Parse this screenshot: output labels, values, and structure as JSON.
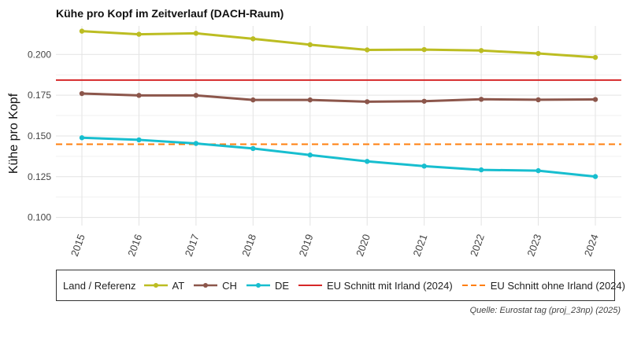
{
  "chart_data": {
    "type": "line",
    "title": "Kühe pro Kopf im Zeitverlauf (DACH-Raum)",
    "ylabel": "Kühe pro Kopf",
    "xlabel": "",
    "ylim": [
      0.095,
      0.2175
    ],
    "yticks": [
      0.1,
      0.125,
      0.15,
      0.175,
      0.2
    ],
    "ytick_labels": [
      "0.100",
      "0.125",
      "0.150",
      "0.175",
      "0.200"
    ],
    "categories": [
      "2015",
      "2016",
      "2017",
      "2018",
      "2019",
      "2020",
      "2021",
      "2022",
      "2023",
      "2024"
    ],
    "series": [
      {
        "name": "AT",
        "color": "#bcbd22",
        "values": [
          0.2143,
          0.2124,
          0.213,
          0.2096,
          0.206,
          0.2028,
          0.203,
          0.2024,
          0.2006,
          0.1982
        ]
      },
      {
        "name": "CH",
        "color": "#8c564b",
        "values": [
          0.176,
          0.1749,
          0.1749,
          0.1721,
          0.1721,
          0.171,
          0.1713,
          0.1725,
          0.1722,
          0.1724
        ]
      },
      {
        "name": "DE",
        "color": "#17becf",
        "values": [
          0.1489,
          0.1476,
          0.1454,
          0.1423,
          0.1383,
          0.1344,
          0.1315,
          0.1292,
          0.1287,
          0.1251
        ]
      }
    ],
    "reference_lines": [
      {
        "name": "EU Schnitt mit Irland (2024)",
        "value": 0.1843,
        "color": "#d62728",
        "style": "solid"
      },
      {
        "name": "EU Schnitt ohne Irland (2024)",
        "value": 0.1449,
        "color": "#ff7f0e",
        "style": "dashed"
      }
    ],
    "legend": {
      "title": "Land / Referenz",
      "position": "bottom"
    },
    "caption": "Quelle: Eurostat tag (proj_23np) (2025)"
  }
}
